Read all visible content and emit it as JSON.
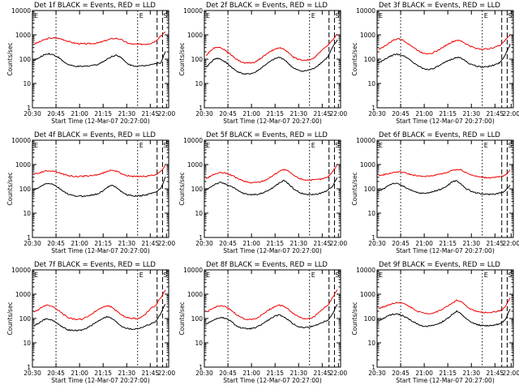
{
  "x_tick_labels": [
    "20:30",
    "20:45",
    "21:00",
    "21:15",
    "21:30",
    "21:45",
    "22:00"
  ],
  "x_label": "Start Time (12-Mar-07 20:27:00)",
  "y_label": "Counts/sec",
  "y_tick_labels": [
    "1",
    "10",
    "100",
    "1000",
    "10000"
  ],
  "marker_labels": {
    "start": "E",
    "e2": "E",
    "s": "S"
  },
  "colors": {
    "events": "#000000",
    "lld": "#ee0000"
  },
  "chart_data": [
    {
      "type": "line",
      "title": "Det 1f BLACK = Events, RED = LLD",
      "xlim": [
        0,
        100
      ],
      "ylim_log10": [
        0,
        4
      ],
      "yscale": "log",
      "series": [
        {
          "values": [
            420,
            500,
            620,
            720,
            740,
            720,
            640,
            540,
            470,
            440,
            430,
            430,
            440,
            460,
            520,
            610,
            700,
            720,
            620,
            480,
            420,
            410,
            410,
            420,
            450,
            560,
            900,
            1300
          ]
        },
        {
          "values": [
            90,
            110,
            150,
            170,
            150,
            120,
            80,
            60,
            52,
            50,
            50,
            52,
            56,
            60,
            75,
            100,
            130,
            150,
            110,
            70,
            55,
            52,
            52,
            55,
            62,
            65,
            70,
            200
          ]
        }
      ]
    },
    {
      "type": "line",
      "title": "Det 2f BLACK = Events, RED = LLD",
      "xlim": [
        0,
        100
      ],
      "ylim_log10": [
        0,
        4
      ],
      "yscale": "log",
      "series": [
        {
          "values": [
            140,
            230,
            320,
            300,
            230,
            160,
            110,
            80,
            70,
            70,
            75,
            100,
            140,
            190,
            250,
            300,
            260,
            180,
            120,
            100,
            90,
            95,
            100,
            160,
            260,
            350,
            600,
            1100
          ]
        },
        {
          "values": [
            45,
            75,
            110,
            100,
            75,
            52,
            35,
            28,
            24,
            25,
            28,
            38,
            55,
            75,
            100,
            120,
            100,
            65,
            42,
            35,
            32,
            35,
            40,
            55,
            80,
            120,
            300,
            600
          ]
        }
      ]
    },
    {
      "type": "line",
      "title": "Det 3f BLACK = Events, RED = LLD",
      "xlim": [
        0,
        100
      ],
      "ylim_log10": [
        0,
        4
      ],
      "yscale": "log",
      "series": [
        {
          "values": [
            260,
            320,
            440,
            600,
            700,
            600,
            450,
            320,
            230,
            180,
            170,
            180,
            220,
            290,
            390,
            500,
            600,
            550,
            420,
            330,
            280,
            260,
            260,
            280,
            320,
            380,
            600,
            1000
          ]
        },
        {
          "values": [
            70,
            90,
            120,
            150,
            160,
            140,
            110,
            75,
            55,
            42,
            38,
            40,
            48,
            62,
            80,
            100,
            120,
            110,
            80,
            60,
            52,
            48,
            48,
            52,
            60,
            75,
            150,
            400
          ]
        }
      ]
    },
    {
      "type": "line",
      "title": "Det 4f BLACK = Events, RED = LLD",
      "xlim": [
        0,
        100
      ],
      "ylim_log10": [
        0,
        4
      ],
      "yscale": "log",
      "series": [
        {
          "values": [
            400,
            450,
            520,
            560,
            540,
            480,
            400,
            350,
            330,
            320,
            330,
            340,
            350,
            380,
            430,
            520,
            600,
            520,
            420,
            360,
            330,
            320,
            320,
            330,
            350,
            380,
            500,
            900
          ]
        },
        {
          "values": [
            90,
            110,
            150,
            170,
            150,
            110,
            80,
            60,
            52,
            50,
            50,
            52,
            56,
            62,
            78,
            110,
            150,
            110,
            75,
            58,
            52,
            50,
            52,
            56,
            65,
            75,
            100,
            300
          ]
        }
      ]
    },
    {
      "type": "line",
      "title": "Det 5f BLACK = Events, RED = LLD",
      "xlim": [
        0,
        100
      ],
      "ylim_log10": [
        0,
        4
      ],
      "yscale": "log",
      "series": [
        {
          "values": [
            260,
            340,
            420,
            460,
            440,
            380,
            300,
            240,
            200,
            180,
            180,
            190,
            220,
            280,
            380,
            520,
            620,
            520,
            360,
            280,
            240,
            230,
            230,
            240,
            260,
            300,
            500,
            1000
          ]
        },
        {
          "values": [
            90,
            120,
            160,
            180,
            160,
            130,
            100,
            75,
            62,
            58,
            58,
            62,
            72,
            90,
            120,
            170,
            220,
            160,
            100,
            75,
            62,
            58,
            58,
            62,
            70,
            85,
            130,
            300
          ]
        }
      ]
    },
    {
      "type": "line",
      "title": "Det 6f BLACK = Events, RED = LLD",
      "xlim": [
        0,
        100
      ],
      "ylim_log10": [
        0,
        4
      ],
      "yscale": "log",
      "series": [
        {
          "values": [
            350,
            380,
            420,
            470,
            500,
            480,
            420,
            370,
            340,
            320,
            330,
            350,
            380,
            420,
            460,
            580,
            620,
            600,
            460,
            380,
            330,
            300,
            290,
            290,
            300,
            310,
            360,
            600
          ]
        },
        {
          "values": [
            80,
            100,
            140,
            170,
            160,
            130,
            100,
            80,
            70,
            65,
            68,
            75,
            85,
            100,
            130,
            190,
            220,
            150,
            100,
            80,
            68,
            62,
            60,
            60,
            62,
            68,
            80,
            150
          ]
        }
      ]
    },
    {
      "type": "line",
      "title": "Det 7f BLACK = Events, RED = LLD",
      "xlim": [
        0,
        100
      ],
      "ylim_log10": [
        0,
        4
      ],
      "yscale": "log",
      "series": [
        {
          "values": [
            180,
            240,
            330,
            360,
            300,
            220,
            150,
            110,
            95,
            92,
            95,
            120,
            160,
            220,
            290,
            340,
            290,
            200,
            140,
            110,
            100,
            100,
            110,
            160,
            260,
            350,
            700,
            1500
          ]
        },
        {
          "values": [
            50,
            65,
            90,
            95,
            80,
            60,
            42,
            34,
            32,
            32,
            34,
            42,
            55,
            75,
            100,
            120,
            100,
            70,
            48,
            40,
            36,
            38,
            42,
            50,
            60,
            75,
            150,
            400
          ]
        }
      ]
    },
    {
      "type": "line",
      "title": "Det 8f BLACK = Events, RED = LLD",
      "xlim": [
        0,
        100
      ],
      "ylim_log10": [
        0,
        4
      ],
      "yscale": "log",
      "series": [
        {
          "values": [
            180,
            230,
            300,
            340,
            300,
            230,
            160,
            115,
            95,
            92,
            95,
            120,
            170,
            230,
            300,
            360,
            320,
            230,
            160,
            120,
            100,
            100,
            110,
            160,
            250,
            340,
            700,
            1500
          ]
        },
        {
          "values": [
            60,
            75,
            95,
            110,
            100,
            80,
            55,
            42,
            38,
            38,
            40,
            50,
            68,
            90,
            120,
            140,
            120,
            85,
            58,
            46,
            42,
            44,
            48,
            58,
            70,
            85,
            150,
            400
          ]
        }
      ]
    },
    {
      "type": "line",
      "title": "Det 9f BLACK = Events, RED = LLD",
      "xlim": [
        0,
        100
      ],
      "ylim_log10": [
        0,
        4
      ],
      "yscale": "log",
      "series": [
        {
          "values": [
            260,
            300,
            360,
            420,
            460,
            420,
            340,
            260,
            200,
            170,
            160,
            165,
            190,
            240,
            310,
            420,
            560,
            480,
            320,
            240,
            200,
            180,
            175,
            180,
            190,
            210,
            300,
            700
          ]
        },
        {
          "values": [
            80,
            100,
            130,
            150,
            150,
            130,
            100,
            75,
            58,
            50,
            48,
            50,
            58,
            72,
            95,
            140,
            200,
            150,
            95,
            70,
            58,
            52,
            50,
            52,
            55,
            60,
            90,
            250
          ]
        }
      ]
    }
  ]
}
